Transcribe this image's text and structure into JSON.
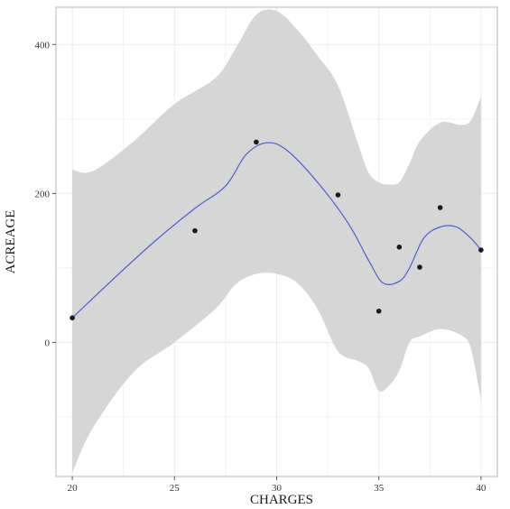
{
  "chart_data": {
    "type": "scatter",
    "xlabel": "CHARGES",
    "ylabel": "ACREAGE",
    "xlim": [
      19.2,
      40.8
    ],
    "ylim": [
      -180,
      450
    ],
    "x_ticks": [
      20,
      25,
      30,
      35,
      40
    ],
    "y_ticks": [
      0,
      200,
      400
    ],
    "grid": true,
    "points": [
      {
        "x": 20,
        "y": 33
      },
      {
        "x": 26,
        "y": 150
      },
      {
        "x": 29,
        "y": 269
      },
      {
        "x": 33,
        "y": 198
      },
      {
        "x": 35,
        "y": 42
      },
      {
        "x": 36,
        "y": 128
      },
      {
        "x": 37,
        "y": 101
      },
      {
        "x": 38,
        "y": 181
      },
      {
        "x": 40,
        "y": 124
      }
    ],
    "smooth_line": [
      {
        "x": 20,
        "y": 33
      },
      {
        "x": 22,
        "y": 85
      },
      {
        "x": 24,
        "y": 135
      },
      {
        "x": 26,
        "y": 180
      },
      {
        "x": 27.5,
        "y": 210
      },
      {
        "x": 28.5,
        "y": 252
      },
      {
        "x": 29.5,
        "y": 268
      },
      {
        "x": 30.5,
        "y": 258
      },
      {
        "x": 32,
        "y": 215
      },
      {
        "x": 33.5,
        "y": 160
      },
      {
        "x": 34.5,
        "y": 110
      },
      {
        "x": 35.2,
        "y": 80
      },
      {
        "x": 36,
        "y": 82
      },
      {
        "x": 36.5,
        "y": 100
      },
      {
        "x": 37.2,
        "y": 140
      },
      {
        "x": 38,
        "y": 155
      },
      {
        "x": 38.8,
        "y": 155
      },
      {
        "x": 39.5,
        "y": 140
      },
      {
        "x": 40,
        "y": 124
      }
    ],
    "confidence_band": {
      "x": [
        20,
        21,
        23,
        25,
        27,
        28,
        29,
        30,
        31,
        32,
        33,
        34,
        34.5,
        35,
        35.5,
        36,
        36.5,
        37,
        38,
        39,
        39.5,
        40
      ],
      "upper": [
        232,
        230,
        270,
        320,
        355,
        395,
        440,
        445,
        420,
        385,
        345,
        265,
        228,
        215,
        212,
        215,
        240,
        270,
        295,
        292,
        298,
        330
      ],
      "lower": [
        -175,
        -115,
        -40,
        0,
        45,
        78,
        92,
        92,
        80,
        45,
        -12,
        -25,
        -35,
        -65,
        -58,
        -38,
        0,
        8,
        18,
        10,
        -8,
        -78
      ]
    },
    "colors": {
      "band": "#d6d6d6",
      "line": "#4f5fd0",
      "points": "#1a1a1a",
      "grid": "#ebebeb",
      "panel_border": "#b5b5b5"
    }
  }
}
